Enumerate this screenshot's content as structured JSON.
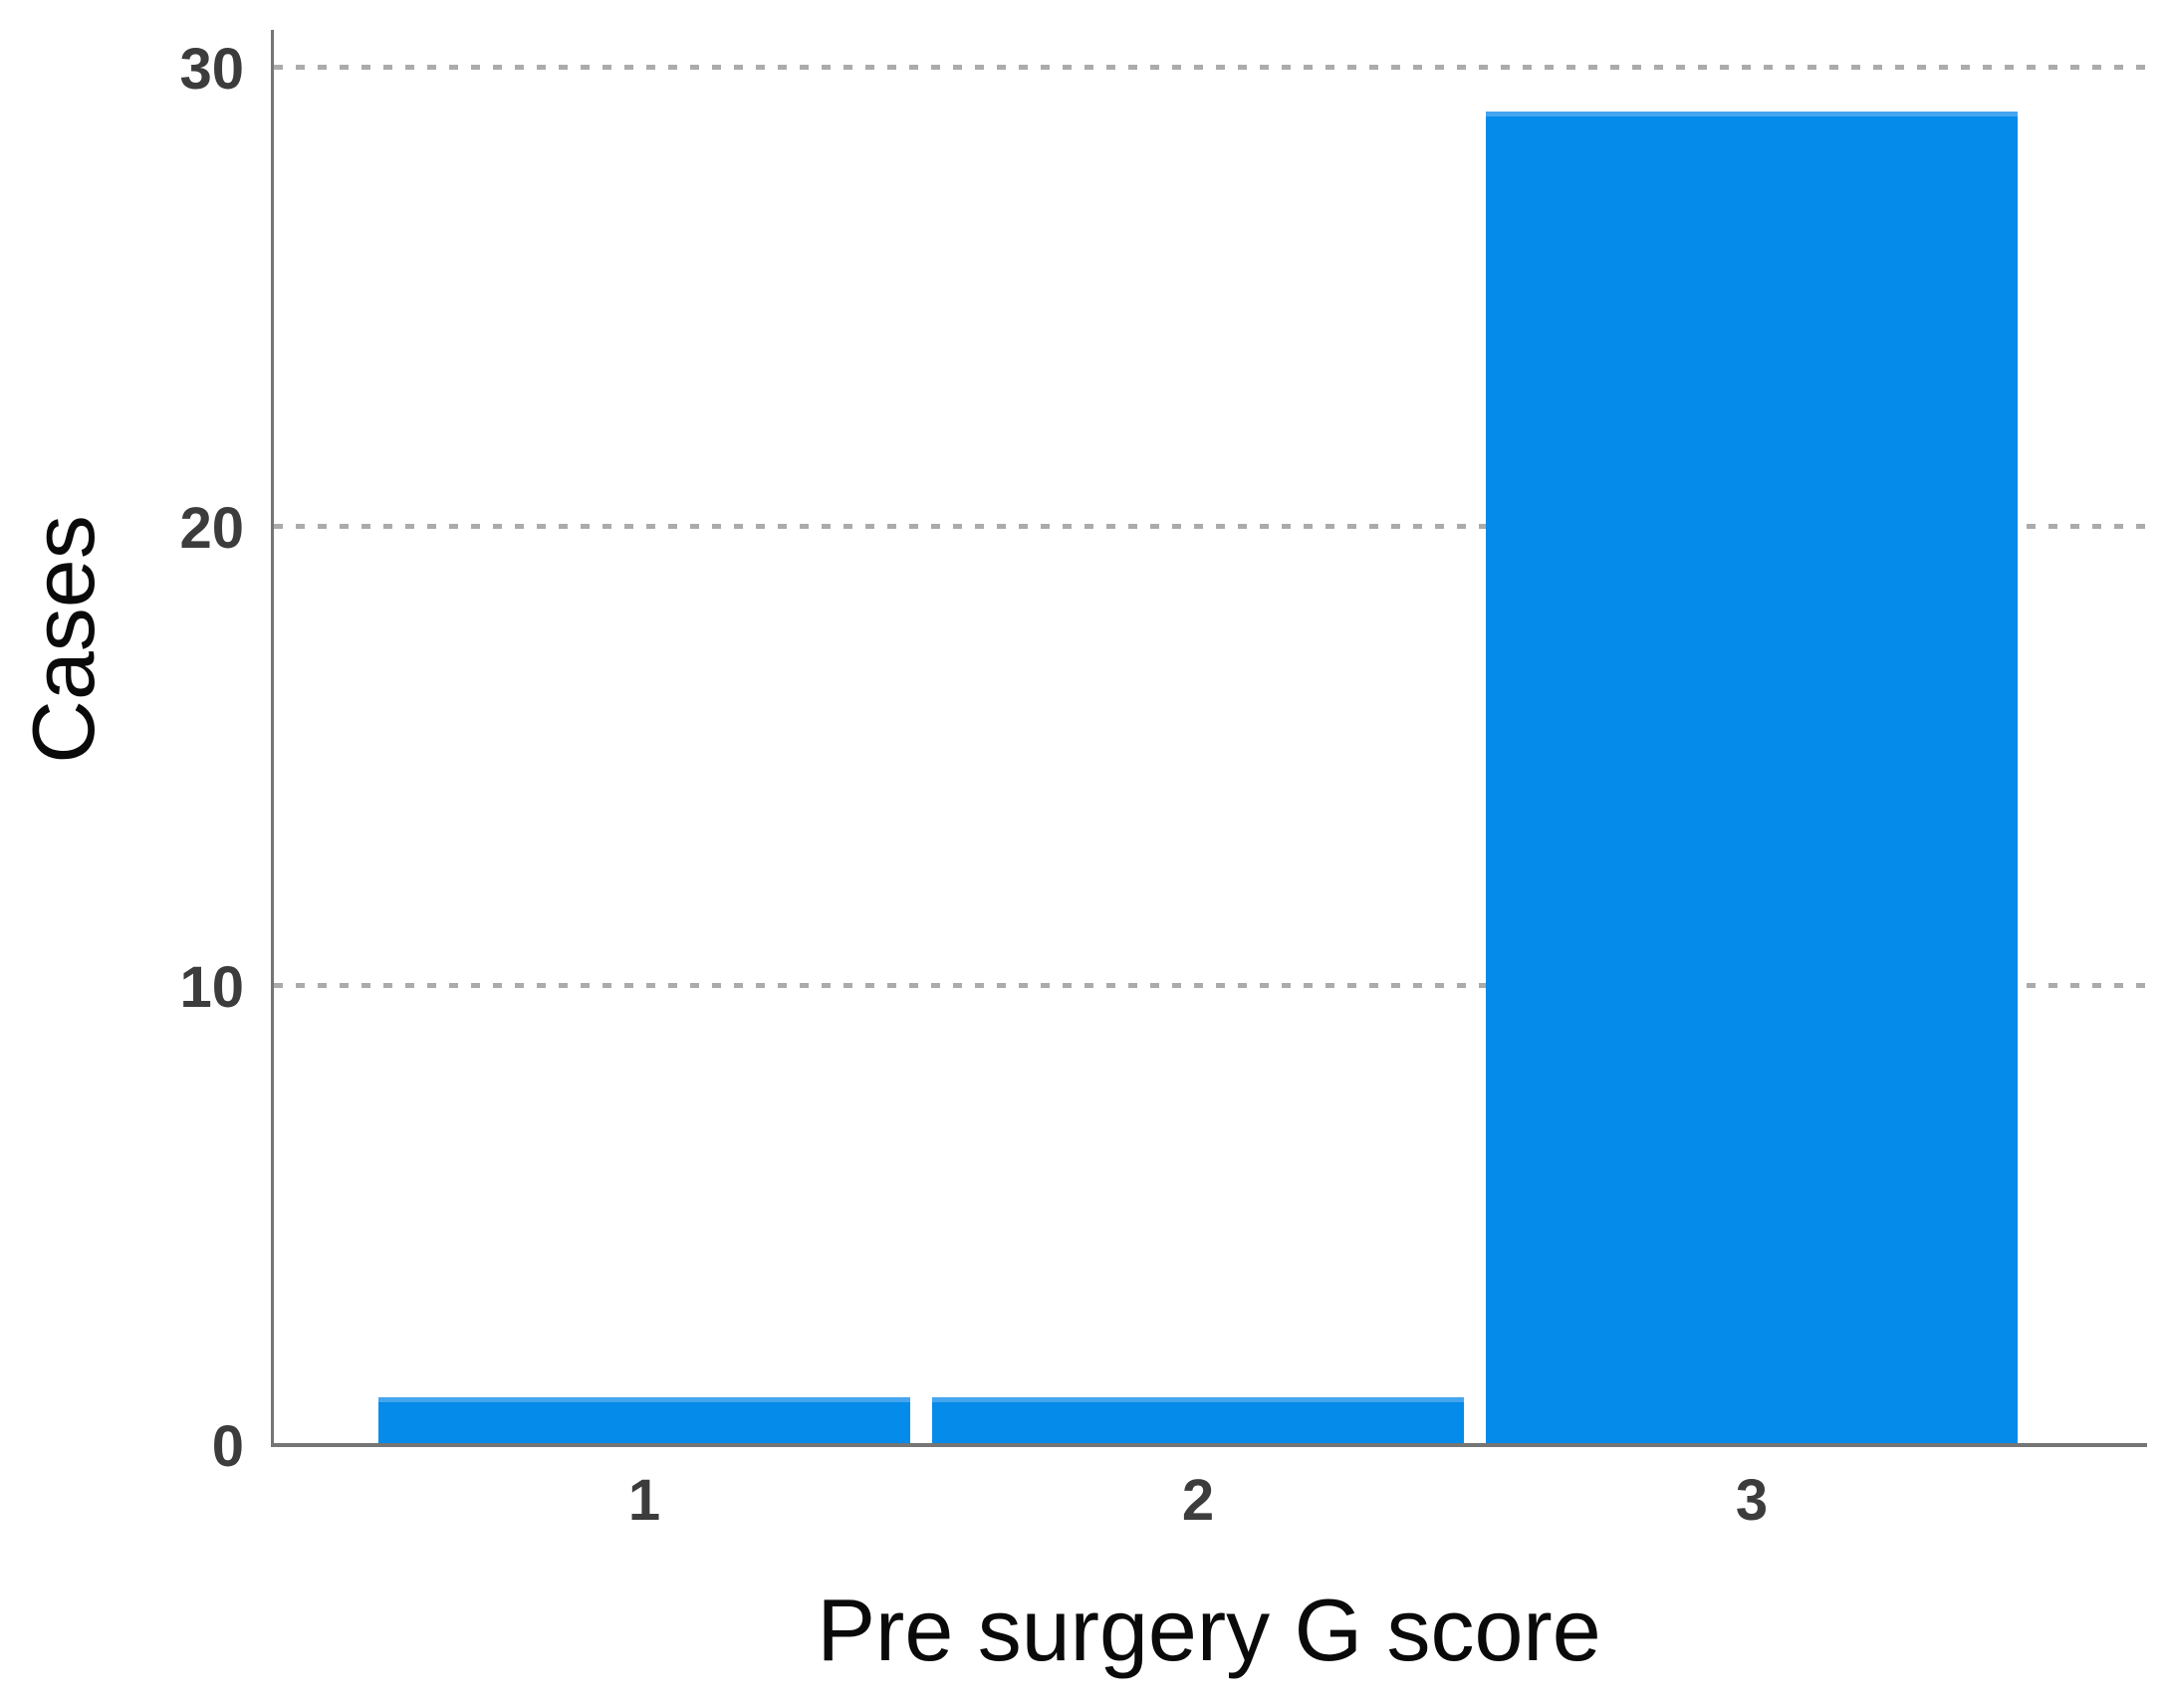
{
  "chart_data": {
    "type": "bar",
    "title": "",
    "categories": [
      "1",
      "2",
      "3"
    ],
    "values": [
      1,
      1,
      29
    ],
    "xlabel": "Pre surgery G score",
    "ylabel": "Cases",
    "yticks": [
      0,
      10,
      20,
      30
    ],
    "ylim": [
      0,
      30
    ],
    "grid": "horizontal dashed gridlines at 10, 20, 30; none at 0 (solid axis baseline)",
    "legend_position": "none",
    "bar_color": "#058be9",
    "bar_edge_color": "#45a5ef",
    "axis_color": "#757575",
    "gridline_color": "#ababab",
    "tick_label_color": "#3c3c3c",
    "axis_title_color": "#0a0a0a",
    "background_color": "#ffffff"
  }
}
